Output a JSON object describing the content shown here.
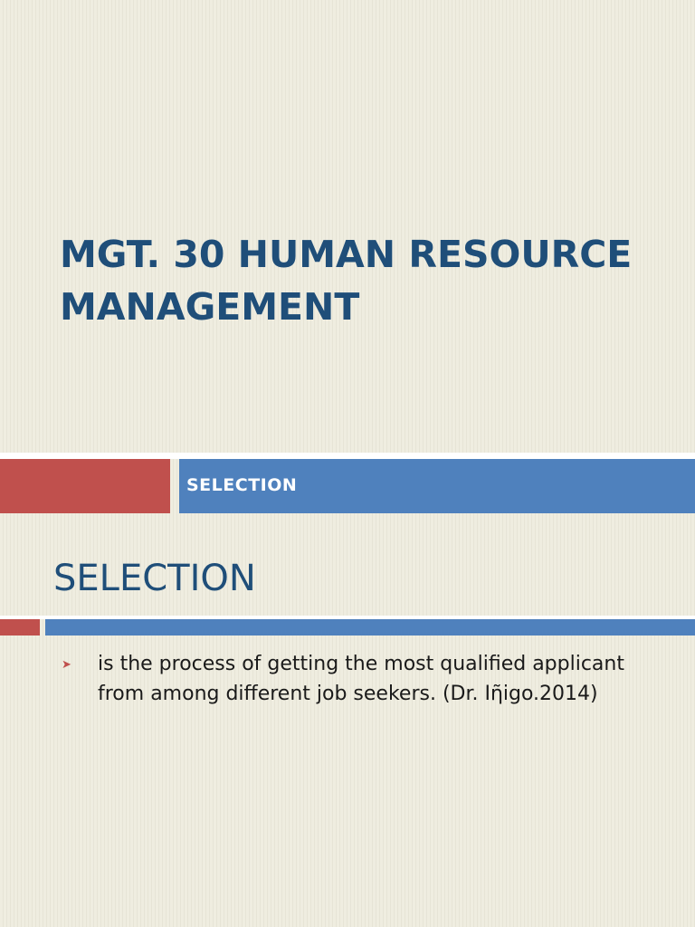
{
  "slide1": {
    "title": "MGT. 30 HUMAN RESOURCE\nMANAGEMENT",
    "subtitle": "SELECTION"
  },
  "slide2": {
    "title": "SELECTION",
    "bullets": [
      {
        "icon": "chevron-right-icon",
        "text": "is the process of getting the most qualified applicant from among different job seekers.  (Dr. Iῆigo.2014)"
      }
    ]
  },
  "colors": {
    "background": "#efede0",
    "title": "#1f4e79",
    "accent_red": "#c0504d",
    "accent_blue": "#4f81bd",
    "bullet": "#c0504d",
    "body_text": "#1a1a1a"
  }
}
